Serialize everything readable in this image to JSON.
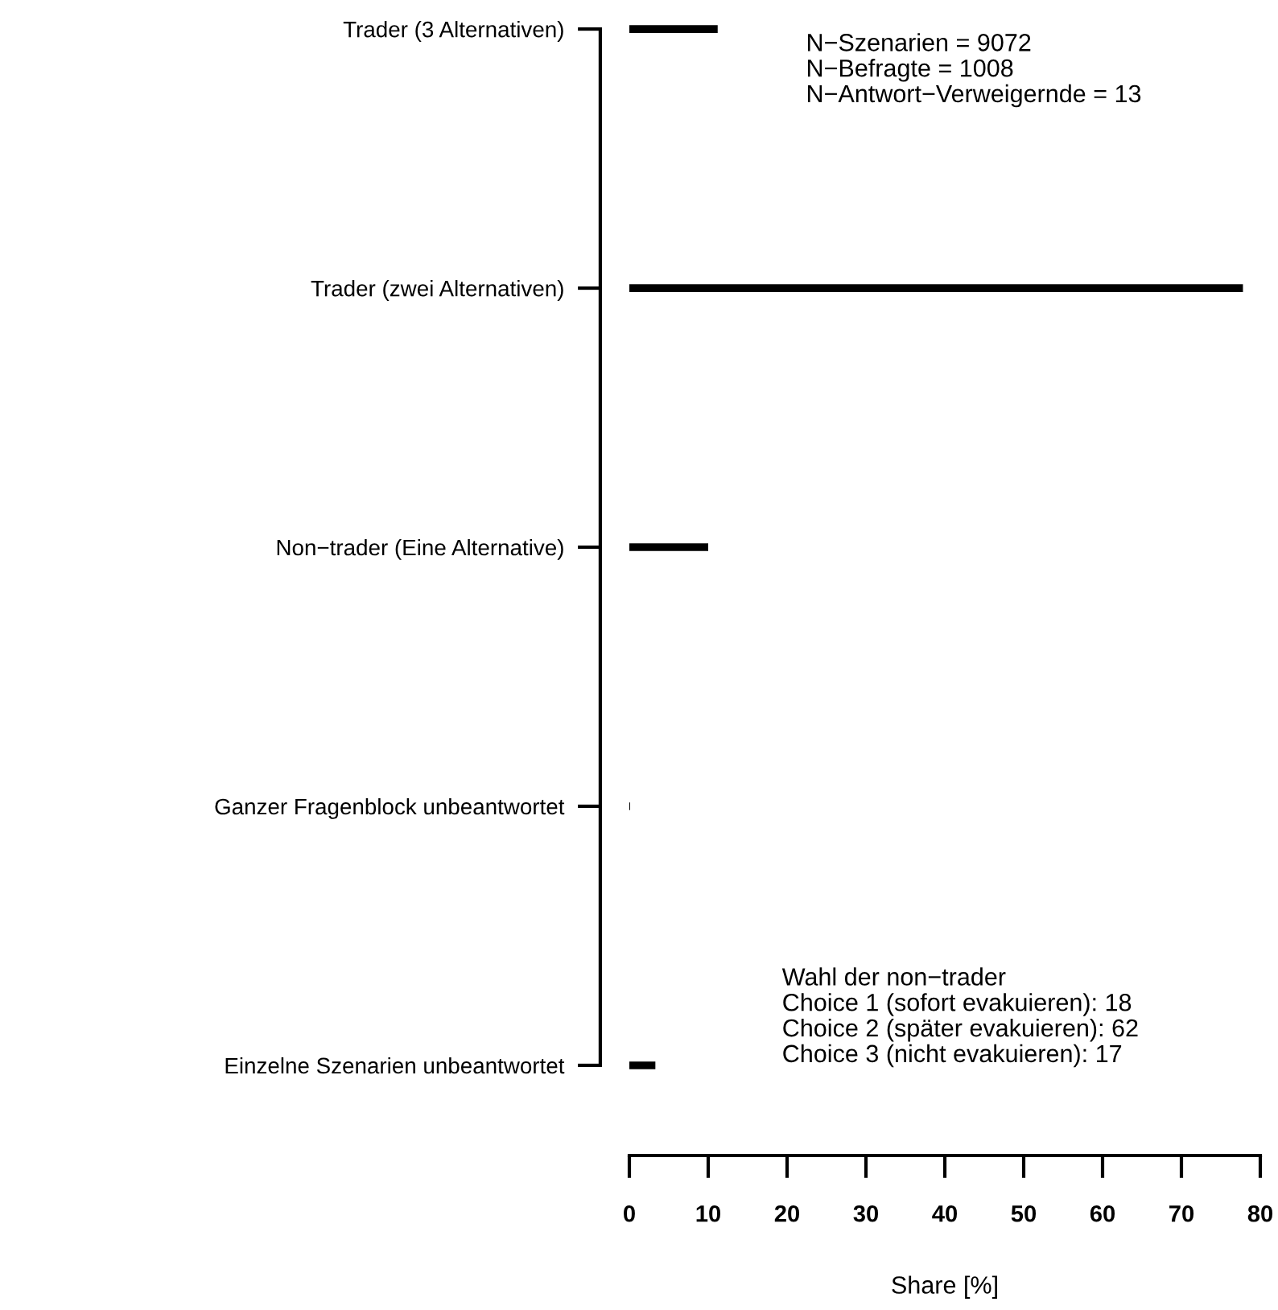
{
  "chart_data": {
    "type": "bar",
    "orientation": "horizontal",
    "categories": [
      "Trader (3 Alternativen)",
      "Trader (zwei Alternativen)",
      "Non−trader (Eine Alternative)",
      "Ganzer Fragenblock unbeantwortet",
      "Einzelne Szenarien unbeantwortet"
    ],
    "values": [
      11.2,
      77.8,
      10,
      0.1,
      3.3
    ],
    "color": "#000000",
    "xlabel": "Share [%]",
    "xlim": [
      0,
      80
    ],
    "xticks": [
      0,
      10,
      20,
      30,
      40,
      50,
      60,
      70,
      80
    ],
    "grid": false,
    "legend": false,
    "annotations": [
      "N−Szenarien = 9072\nN−Befragte = 1008\nN−Antwort−Verweigernde = 13",
      "Wahl der non−trader\nChoice 1 (sofort evakuieren): 18\nChoice 2 (später evakuieren): 62\nChoice 3 (nicht evakuieren): 17"
    ]
  }
}
